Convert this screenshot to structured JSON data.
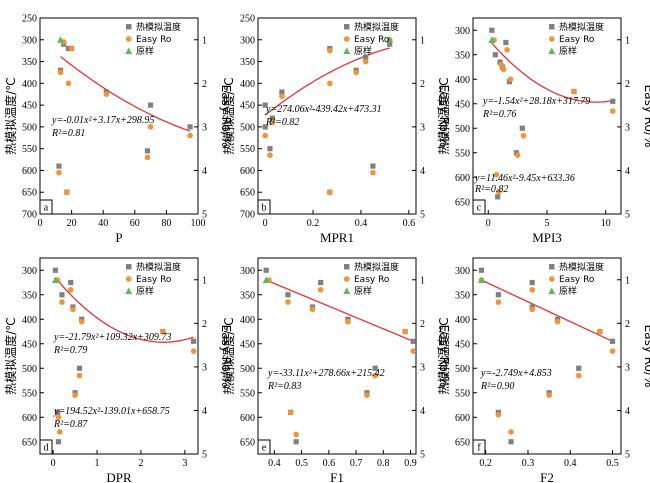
{
  "legend": {
    "temp_label": "热模拟温度",
    "easy_label": "Easy Ro",
    "raw_label": "原样"
  },
  "axis_labels": {
    "left": "热模拟温度/℃",
    "right": "Easy Ro/%"
  },
  "colors": {
    "temp": "#808080",
    "easy": "#f39237",
    "raw": "#5bb85b",
    "fit": "#e83333"
  },
  "chart_data": [
    {
      "type": "scatter",
      "panel": "a",
      "xlabel": "P",
      "xlim": [
        0,
        100
      ],
      "xticks": [
        0,
        20,
        40,
        60,
        80,
        100
      ],
      "ylim": [
        250,
        700
      ],
      "yticks": [
        250,
        300,
        350,
        400,
        450,
        500,
        550,
        600,
        650,
        700
      ],
      "rlim": [
        0.5,
        5
      ],
      "rticks": [
        1,
        2,
        3,
        4,
        5
      ],
      "temp_points": [
        [
          12,
          590
        ],
        [
          13,
          370
        ],
        [
          15,
          310
        ],
        [
          17,
          650
        ],
        [
          18,
          320
        ],
        [
          20,
          320
        ],
        [
          42,
          420
        ],
        [
          68,
          555
        ],
        [
          70,
          450
        ],
        [
          95,
          500
        ]
      ],
      "easy_points": [
        [
          12,
          605
        ],
        [
          13,
          375
        ],
        [
          15,
          305
        ],
        [
          17,
          650
        ],
        [
          18,
          400
        ],
        [
          20,
          320
        ],
        [
          42,
          425
        ],
        [
          68,
          570
        ],
        [
          70,
          500
        ],
        [
          95,
          520
        ]
      ],
      "raw_points": [
        [
          13,
          300
        ]
      ],
      "fit_curve": {
        "a": -0.01,
        "b": 3.17,
        "c": 298.95,
        "xrange": [
          13,
          95
        ]
      },
      "equation": "y=-0.01x²+3.17x+298.95",
      "r2": "R²=0.81"
    },
    {
      "type": "scatter",
      "panel": "b",
      "xlabel": "MPR1",
      "xlim": [
        -0.03,
        0.63
      ],
      "xticks": [
        0,
        0.2,
        0.4,
        0.6
      ],
      "ylim": [
        250,
        700
      ],
      "yticks": [
        250,
        300,
        350,
        400,
        450,
        500,
        550,
        600,
        650,
        700
      ],
      "rlim": [
        0.5,
        5
      ],
      "rticks": [
        1,
        2,
        3,
        4,
        5
      ],
      "temp_points": [
        [
          0.0,
          450
        ],
        [
          0.0,
          500
        ],
        [
          0.02,
          550
        ],
        [
          0.03,
          480
        ],
        [
          0.07,
          420
        ],
        [
          0.27,
          320
        ],
        [
          0.27,
          650
        ],
        [
          0.38,
          370
        ],
        [
          0.42,
          340
        ],
        [
          0.45,
          590
        ],
        [
          0.52,
          310
        ]
      ],
      "easy_points": [
        [
          0.0,
          520
        ],
        [
          0.02,
          565
        ],
        [
          0.03,
          490
        ],
        [
          0.07,
          430
        ],
        [
          0.27,
          325
        ],
        [
          0.27,
          400
        ],
        [
          0.27,
          650
        ],
        [
          0.38,
          375
        ],
        [
          0.42,
          350
        ],
        [
          0.45,
          605
        ],
        [
          0.52,
          300
        ]
      ],
      "raw_points": [
        [
          0.52,
          300
        ]
      ],
      "fit_curve": {
        "a": 274.06,
        "b": -439.42,
        "c": 473.31,
        "xrange": [
          0,
          0.52
        ]
      },
      "equation": "y=274.06x²-439.42x+473.31",
      "r2": "R²=0.82"
    },
    {
      "type": "scatter",
      "panel": "c",
      "xlabel": "MPI3",
      "xlim": [
        -1.3,
        11.3
      ],
      "xticks": [
        0,
        5,
        10
      ],
      "ylim": [
        275,
        675
      ],
      "yticks": [
        300,
        350,
        400,
        450,
        500,
        550,
        600,
        650
      ],
      "rlim": [
        0.5,
        5
      ],
      "rticks": [
        1,
        2,
        3,
        4,
        5
      ],
      "temp_points": [
        [
          0.3,
          300
        ],
        [
          0.6,
          350
        ],
        [
          0.8,
          640
        ],
        [
          1.0,
          365
        ],
        [
          1.2,
          375
        ],
        [
          1.5,
          325
        ],
        [
          1.8,
          405
        ],
        [
          2.4,
          550
        ],
        [
          2.9,
          500
        ],
        [
          7.3,
          425
        ],
        [
          10.6,
          445
        ]
      ],
      "easy_points": [
        [
          0.5,
          320
        ],
        [
          0.7,
          595
        ],
        [
          0.9,
          630
        ],
        [
          1.1,
          370
        ],
        [
          1.3,
          380
        ],
        [
          1.6,
          340
        ],
        [
          1.9,
          400
        ],
        [
          2.5,
          555
        ],
        [
          3.0,
          515
        ],
        [
          7.3,
          425
        ],
        [
          10.6,
          465
        ]
      ],
      "raw_points": [
        [
          0.3,
          320
        ]
      ],
      "fit_curve": {
        "a": -1.54,
        "b": 28.18,
        "c": 317.79,
        "xrange": [
          0.3,
          10.6
        ]
      },
      "equation": "y=-1.54x²+28.18x+317.79",
      "r2": "R²=0.76",
      "equation2": "y=11.46x²-9.45x+633.36",
      "r2_2": "R²=0.82"
    },
    {
      "type": "scatter",
      "panel": "d",
      "xlabel": "DPR",
      "xlim": [
        -0.3,
        3.3
      ],
      "xticks": [
        0,
        1,
        2,
        3
      ],
      "ylim": [
        275,
        675
      ],
      "yticks": [
        300,
        350,
        400,
        450,
        500,
        550,
        600,
        650
      ],
      "rlim": [
        0.5,
        5
      ],
      "rticks": [
        1,
        2,
        3,
        4,
        5
      ],
      "temp_points": [
        [
          0.05,
          300
        ],
        [
          0.1,
          590
        ],
        [
          0.12,
          650
        ],
        [
          0.2,
          350
        ],
        [
          0.4,
          325
        ],
        [
          0.45,
          375
        ],
        [
          0.5,
          550
        ],
        [
          0.6,
          500
        ],
        [
          0.65,
          400
        ],
        [
          2.5,
          425
        ],
        [
          3.2,
          445
        ]
      ],
      "easy_points": [
        [
          0.1,
          320
        ],
        [
          0.12,
          600
        ],
        [
          0.15,
          630
        ],
        [
          0.2,
          365
        ],
        [
          0.4,
          340
        ],
        [
          0.45,
          380
        ],
        [
          0.5,
          555
        ],
        [
          0.6,
          515
        ],
        [
          0.65,
          405
        ],
        [
          2.5,
          425
        ],
        [
          3.2,
          465
        ]
      ],
      "raw_points": [
        [
          0.05,
          320
        ]
      ],
      "fit_curve": {
        "a": -21.79,
        "b": 109.32,
        "c": 309.73,
        "xrange": [
          0.05,
          3.2
        ]
      },
      "equation": "y=-21.79x²+109.32x+309.73",
      "r2": "R²=0.79",
      "equation2": "y=194.52x²-139.01x+658.75",
      "r2_2": "R²=0.87"
    },
    {
      "type": "scatter",
      "panel": "e",
      "xlabel": "F1",
      "xlim": [
        0.34,
        0.92
      ],
      "xticks": [
        0.4,
        0.5,
        0.6,
        0.7,
        0.8,
        0.9
      ],
      "ylim": [
        275,
        675
      ],
      "yticks": [
        300,
        350,
        400,
        450,
        500,
        550,
        600,
        650
      ],
      "rlim": [
        0.5,
        5
      ],
      "rticks": [
        1,
        2,
        3,
        4,
        5
      ],
      "temp_points": [
        [
          0.37,
          300
        ],
        [
          0.45,
          350
        ],
        [
          0.46,
          590
        ],
        [
          0.48,
          650
        ],
        [
          0.54,
          375
        ],
        [
          0.57,
          325
        ],
        [
          0.67,
          400
        ],
        [
          0.74,
          550
        ],
        [
          0.77,
          500
        ],
        [
          0.88,
          425
        ],
        [
          0.91,
          445
        ]
      ],
      "easy_points": [
        [
          0.38,
          320
        ],
        [
          0.45,
          365
        ],
        [
          0.46,
          590
        ],
        [
          0.48,
          635
        ],
        [
          0.54,
          380
        ],
        [
          0.57,
          340
        ],
        [
          0.67,
          405
        ],
        [
          0.74,
          555
        ],
        [
          0.77,
          515
        ],
        [
          0.88,
          425
        ],
        [
          0.91,
          465
        ]
      ],
      "raw_points": [
        [
          0.37,
          320
        ]
      ],
      "fit_curve": {
        "a": -33.11,
        "b": 278.66,
        "c": 215.42,
        "xrange": [
          0.37,
          0.91
        ],
        "linear_equiv": true
      },
      "equation": "y=-33.11x²+278.66x+215.42",
      "r2": "R²=0.83"
    },
    {
      "type": "scatter",
      "panel": "f",
      "xlabel": "F2",
      "xlim": [
        0.17,
        0.52
      ],
      "xticks": [
        0.2,
        0.3,
        0.4,
        0.5
      ],
      "ylim": [
        275,
        675
      ],
      "yticks": [
        300,
        350,
        400,
        450,
        500,
        550,
        600,
        650
      ],
      "rlim": [
        0.5,
        5
      ],
      "rticks": [
        1,
        2,
        3,
        4,
        5
      ],
      "temp_points": [
        [
          0.19,
          300
        ],
        [
          0.23,
          350
        ],
        [
          0.23,
          590
        ],
        [
          0.26,
          650
        ],
        [
          0.31,
          375
        ],
        [
          0.31,
          325
        ],
        [
          0.35,
          550
        ],
        [
          0.37,
          400
        ],
        [
          0.42,
          500
        ],
        [
          0.47,
          425
        ],
        [
          0.5,
          445
        ]
      ],
      "easy_points": [
        [
          0.19,
          320
        ],
        [
          0.23,
          365
        ],
        [
          0.23,
          595
        ],
        [
          0.26,
          630
        ],
        [
          0.31,
          380
        ],
        [
          0.31,
          340
        ],
        [
          0.35,
          555
        ],
        [
          0.37,
          405
        ],
        [
          0.42,
          515
        ],
        [
          0.47,
          425
        ],
        [
          0.5,
          465
        ]
      ],
      "raw_points": [
        [
          0.19,
          320
        ]
      ],
      "fit_curve": {
        "a": 0,
        "b": -2.749,
        "c": 4.853,
        "xrange": [
          0.19,
          0.5
        ],
        "linear_equiv": true
      },
      "equation": "y=-2.749x+4.853",
      "r2": "R²=0.90"
    }
  ]
}
